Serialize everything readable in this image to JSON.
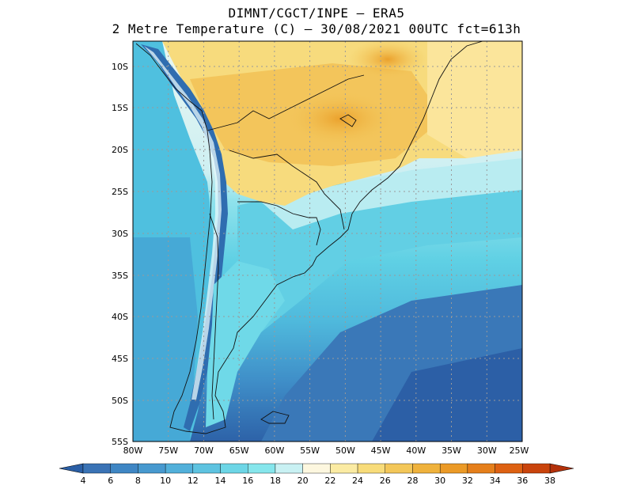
{
  "header": {
    "line1": "DIMNT/CGCT/INPE –  ERA5",
    "line2": "2 Metre Temperature (C) –  30/08/2021 00UTC fct=613h"
  },
  "map": {
    "lon_min": -80,
    "lon_max": -25,
    "lat_min": -55,
    "lat_max": -7,
    "lat_ticks": [
      "10S",
      "15S",
      "20S",
      "25S",
      "30S",
      "35S",
      "40S",
      "45S",
      "50S",
      "55S"
    ],
    "lon_ticks": [
      "80W",
      "75W",
      "70W",
      "65W",
      "60W",
      "55W",
      "50W",
      "45W",
      "40W",
      "35W",
      "30W",
      "25W"
    ],
    "grid": "dotted"
  },
  "colorbar": {
    "labels": [
      "4",
      "6",
      "8",
      "10",
      "12",
      "14",
      "16",
      "18",
      "20",
      "22",
      "24",
      "26",
      "28",
      "30",
      "32",
      "34",
      "36",
      "38"
    ],
    "colors": [
      "#2a5fa6",
      "#3a73b5",
      "#3f86c4",
      "#4799cf",
      "#52b0da",
      "#5ec3e0",
      "#6dd6e6",
      "#86e6ec",
      "#c9f1f3",
      "#fdf7df",
      "#fbeba3",
      "#f8dc7a",
      "#f3c759",
      "#efb23c",
      "#eb9a27",
      "#e57f1b",
      "#dd6112",
      "#c9440c",
      "#b3310a"
    ]
  }
}
